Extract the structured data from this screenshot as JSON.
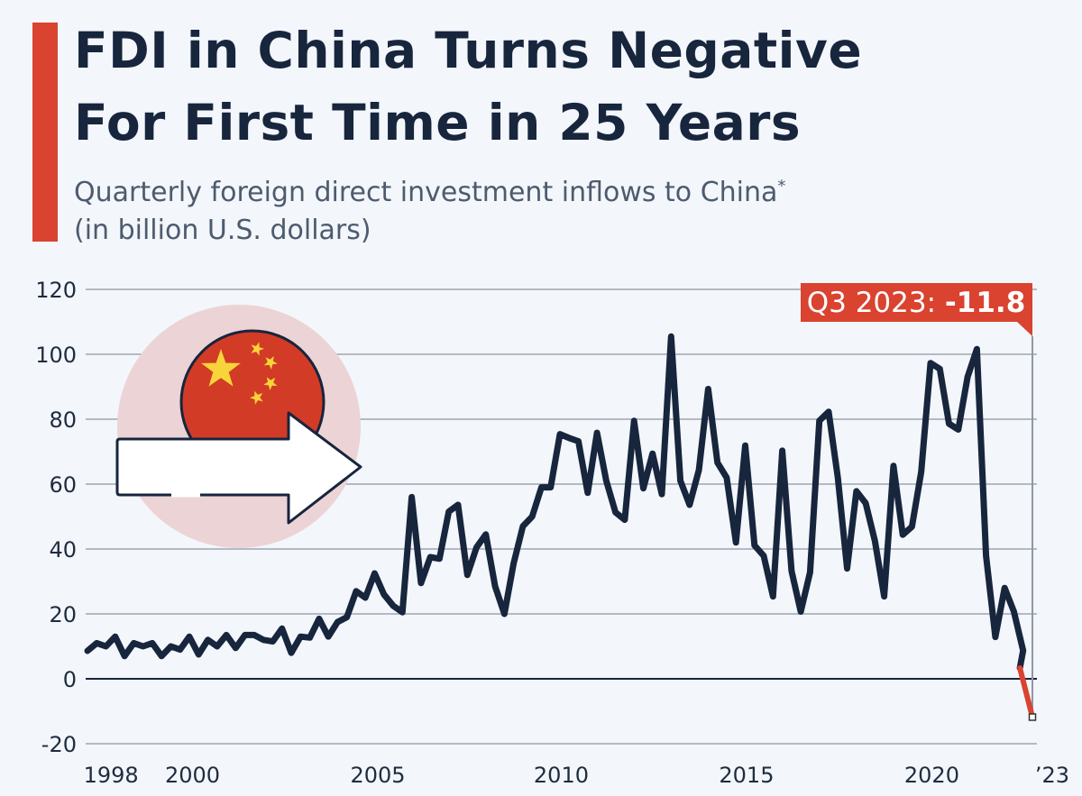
{
  "header": {
    "title_line1": "FDI in China Turns Negative",
    "title_line2": "For First Time in 25 Years",
    "subtitle_line1": "Quarterly foreign direct investment inflows to China",
    "subtitle_marker": "*",
    "subtitle_line2": "(in billion U.S. dollars)"
  },
  "colors": {
    "line": "#17253d",
    "accent": "#d9432f",
    "grid": "#8f97a4",
    "flag_red": "#d23b26",
    "star": "#f7d43a",
    "halo": "#ecd3d6"
  },
  "chart_data": {
    "type": "line",
    "title": "FDI in China Turns Negative For First Time in 25 Years",
    "ylabel": "billion U.S. dollars",
    "xlabel": "",
    "ylim": [
      -20,
      120
    ],
    "yticks": [
      -20,
      0,
      20,
      40,
      60,
      80,
      100,
      120
    ],
    "xtick_labels": [
      {
        "label": "1998",
        "year": 1998.1
      },
      {
        "label": "2000",
        "year": 2000.3
      },
      {
        "label": "2005",
        "year": 2005.3
      },
      {
        "label": "2010",
        "year": 2010.25
      },
      {
        "label": "2015",
        "year": 2015.25
      },
      {
        "label": "2020",
        "year": 2020.25
      },
      {
        "label": "’23",
        "year": 2023.5
      }
    ],
    "x_start": "Q1 1998",
    "x_end": "Q3 2023",
    "grid": true,
    "annotation": {
      "label": "Q3 2023: ",
      "value": "-11.8"
    },
    "series": [
      {
        "name": "FDI inflows",
        "values": [
          8.6,
          11,
          10,
          13,
          7,
          11,
          10,
          11,
          7,
          10,
          9,
          13,
          7.5,
          12,
          10,
          13.5,
          9.5,
          13.5,
          13.5,
          12,
          11.5,
          15.5,
          8,
          13,
          12.7,
          18.5,
          13,
          17.5,
          19,
          27,
          25,
          32.5,
          26,
          22.5,
          20.5,
          56,
          29.5,
          37.5,
          37,
          51.5,
          53.6,
          32,
          40.5,
          44.5,
          28.5,
          20,
          35.5,
          47,
          50,
          59,
          59,
          75.4,
          74.2,
          73.2,
          57.3,
          75.8,
          61,
          51.3,
          49,
          79.5,
          58.7,
          69.4,
          56.9,
          105.5,
          61,
          53.6,
          64.3,
          89.3,
          66.6,
          62,
          42,
          71.9,
          41.1,
          37.9,
          25.4,
          70.3,
          33.2,
          20.7,
          32.8,
          79.5,
          82.3,
          62,
          34,
          57.8,
          54.1,
          42.5,
          25.4,
          65.6,
          44.4,
          46.9,
          63.8,
          97.3,
          95.5,
          78.6,
          76.8,
          93,
          101.6,
          37.9,
          12.9,
          28,
          20.7,
          8.7,
          -11.8
        ]
      }
    ]
  }
}
